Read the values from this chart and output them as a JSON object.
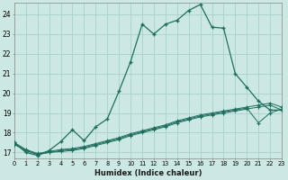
{
  "xlabel": "Humidex (Indice chaleur)",
  "background_color": "#cce8e4",
  "grid_color": "#aacfcc",
  "line_color": "#1e6e5e",
  "x_ticks": [
    0,
    1,
    2,
    3,
    4,
    5,
    6,
    7,
    8,
    9,
    10,
    11,
    12,
    13,
    14,
    15,
    16,
    17,
    18,
    19,
    20,
    21,
    22,
    23
  ],
  "y_ticks": [
    17,
    18,
    19,
    20,
    21,
    22,
    23,
    24
  ],
  "xlim": [
    0,
    23
  ],
  "ylim": [
    16.7,
    24.6
  ],
  "main_line_x": [
    0,
    1,
    2,
    3,
    4,
    5,
    6,
    7,
    8,
    9,
    10,
    11,
    12,
    13,
    14,
    15,
    16,
    17,
    18,
    19,
    20,
    21,
    22,
    23
  ],
  "main_line_y": [
    17.5,
    17.0,
    16.85,
    17.1,
    17.55,
    18.15,
    17.6,
    18.3,
    18.7,
    20.1,
    21.6,
    23.5,
    23.0,
    23.5,
    23.7,
    24.2,
    24.5,
    23.35,
    23.3,
    21.0,
    20.3,
    19.6,
    19.15,
    19.15
  ],
  "line2_x": [
    0,
    1,
    2,
    3,
    4,
    5,
    6,
    7,
    8,
    9,
    10,
    11,
    12,
    13,
    14,
    15,
    16,
    17,
    18,
    19,
    20,
    21,
    22,
    23
  ],
  "line2_y": [
    17.4,
    17.1,
    16.9,
    17.0,
    17.05,
    17.1,
    17.2,
    17.35,
    17.5,
    17.65,
    17.85,
    18.0,
    18.15,
    18.3,
    18.5,
    18.65,
    18.8,
    18.9,
    19.0,
    19.1,
    19.2,
    19.3,
    19.4,
    19.15
  ],
  "line3_x": [
    0,
    1,
    2,
    3,
    4,
    5,
    6,
    7,
    8,
    9,
    10,
    11,
    12,
    13,
    14,
    15,
    16,
    17,
    18,
    19,
    20,
    21,
    22,
    23
  ],
  "line3_y": [
    17.45,
    17.1,
    16.9,
    17.0,
    17.1,
    17.15,
    17.25,
    17.4,
    17.55,
    17.7,
    17.9,
    18.05,
    18.2,
    18.35,
    18.55,
    18.7,
    18.85,
    18.95,
    19.05,
    19.15,
    19.25,
    18.5,
    19.0,
    19.2
  ],
  "line4_x": [
    0,
    1,
    2,
    3,
    4,
    5,
    6,
    7,
    8,
    9,
    10,
    11,
    12,
    13,
    14,
    15,
    16,
    17,
    18,
    19,
    20,
    21,
    22,
    23
  ],
  "line4_y": [
    17.5,
    17.15,
    16.95,
    17.05,
    17.15,
    17.2,
    17.3,
    17.45,
    17.6,
    17.75,
    17.95,
    18.1,
    18.25,
    18.4,
    18.6,
    18.75,
    18.9,
    19.0,
    19.1,
    19.2,
    19.3,
    19.4,
    19.5,
    19.3
  ]
}
